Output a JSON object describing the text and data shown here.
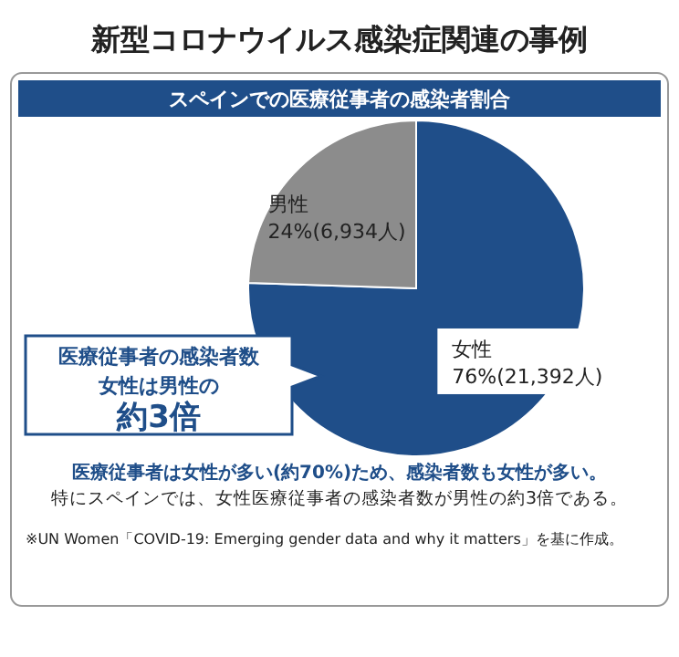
{
  "chart_data": {
    "type": "pie",
    "title": "新型コロナウイルス感染症関連の事例",
    "subtitle": "スペインでの医療従事者の感染者割合",
    "categories": [
      "女性",
      "男性"
    ],
    "values": [
      21392,
      6934
    ],
    "value_labels": [
      "76%(21,392人)",
      "24%(6,934人)"
    ],
    "colors": [
      "#1f4e89",
      "#8c8c8c"
    ],
    "annotations": [
      "医療従事者の感染者数",
      "女性は男性の",
      "約3倍",
      "医療従事者は女性が多い(約70%)ため、感染者数も女性が多い。",
      "特にスペインでは、女性医療従事者の感染者数が男性の約3倍である。",
      "※UN Women「COVID-19: Emerging gender data and why it matters」を基に作成。"
    ]
  }
}
